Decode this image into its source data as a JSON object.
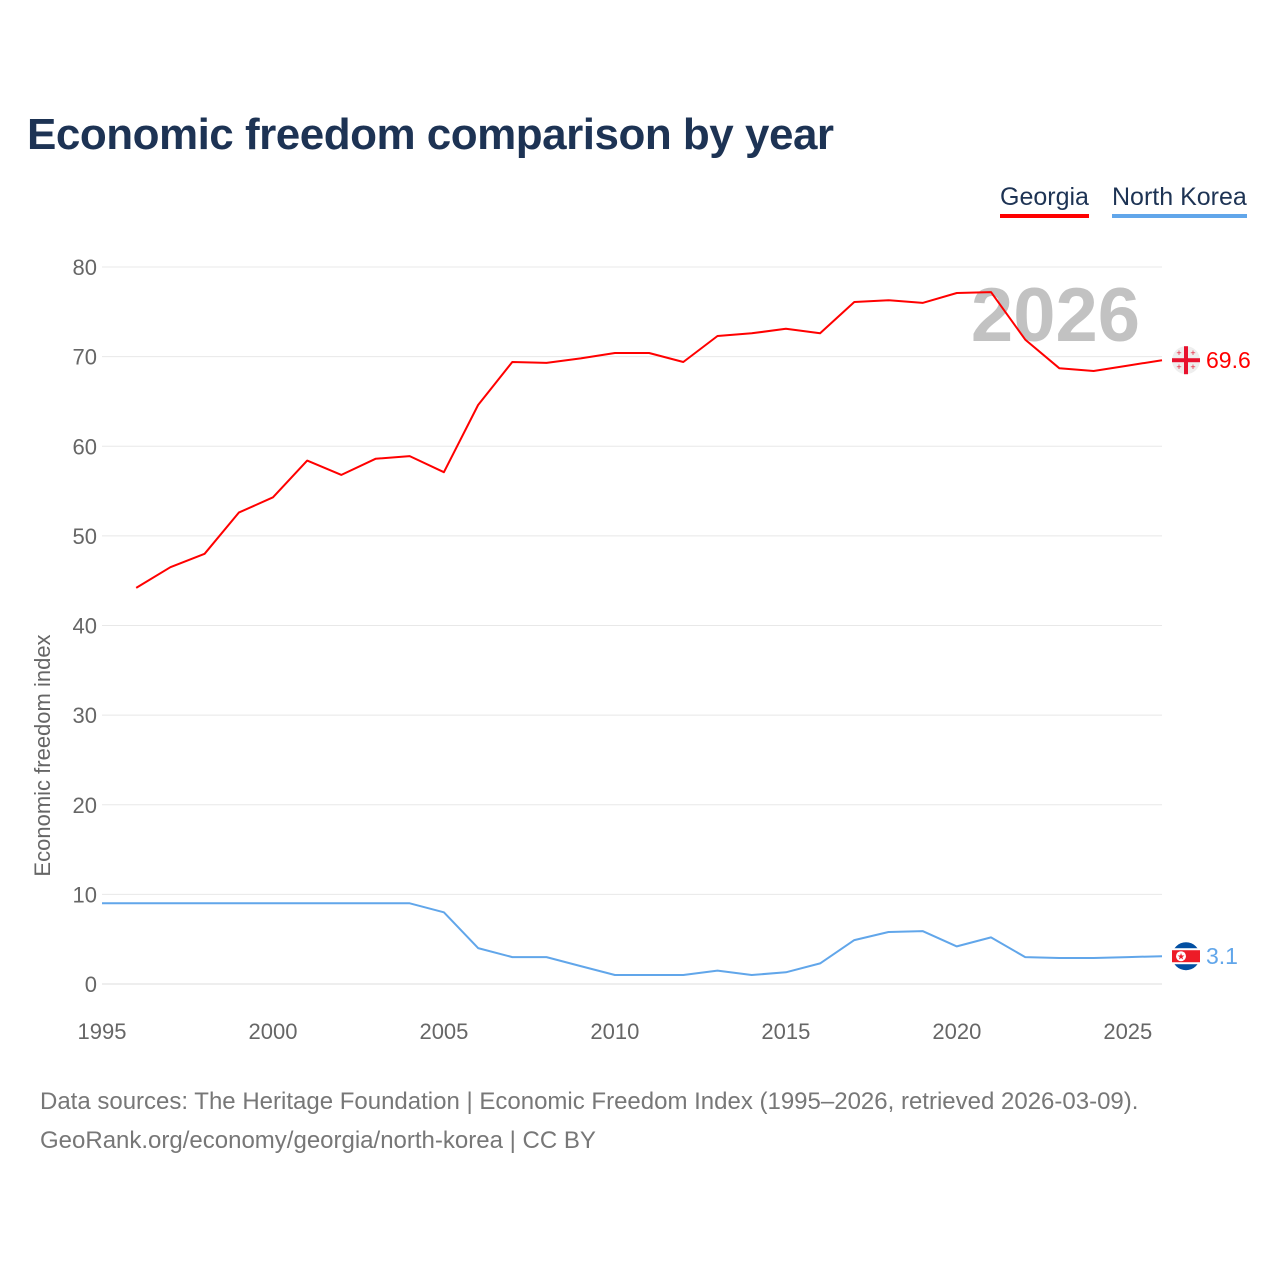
{
  "title": "Economic freedom comparison by year",
  "chart_data": {
    "type": "line",
    "title": "Economic freedom comparison by year",
    "xlabel": "",
    "ylabel": "Economic freedom index",
    "xlim": [
      1995,
      2026
    ],
    "ylim": [
      0,
      80
    ],
    "x_ticks": [
      1995,
      2000,
      2005,
      2010,
      2015,
      2020,
      2025
    ],
    "y_ticks": [
      0,
      10,
      20,
      30,
      40,
      50,
      60,
      70,
      80
    ],
    "grid": true,
    "legend_placement": "top-right",
    "year_watermark": "2026",
    "series": [
      {
        "name": "Georgia",
        "color": "#ff0000",
        "end_label": "69.6",
        "flag": "georgia-flag",
        "x": [
          1996,
          1997,
          1998,
          1999,
          2000,
          2001,
          2002,
          2003,
          2004,
          2005,
          2006,
          2007,
          2008,
          2009,
          2010,
          2011,
          2012,
          2013,
          2014,
          2015,
          2016,
          2017,
          2018,
          2019,
          2020,
          2021,
          2022,
          2023,
          2024,
          2025,
          2026
        ],
        "values": [
          44.2,
          46.5,
          48.0,
          52.6,
          54.3,
          58.4,
          56.8,
          58.6,
          58.9,
          57.1,
          64.6,
          69.4,
          69.3,
          69.8,
          70.4,
          70.4,
          69.4,
          72.3,
          72.6,
          73.1,
          72.6,
          76.1,
          76.3,
          76.0,
          77.1,
          77.2,
          71.9,
          68.7,
          68.4,
          69.0,
          69.6
        ]
      },
      {
        "name": "North Korea",
        "color": "#61a6ea",
        "end_label": "3.1",
        "flag": "north-korea-flag",
        "x": [
          1995,
          1996,
          1997,
          1998,
          1999,
          2000,
          2001,
          2002,
          2003,
          2004,
          2005,
          2006,
          2007,
          2008,
          2009,
          2010,
          2011,
          2012,
          2013,
          2014,
          2015,
          2016,
          2017,
          2018,
          2019,
          2020,
          2021,
          2022,
          2023,
          2024,
          2025,
          2026
        ],
        "values": [
          9.0,
          9.0,
          9.0,
          9.0,
          9.0,
          9.0,
          9.0,
          9.0,
          9.0,
          9.0,
          8.0,
          4.0,
          3.0,
          3.0,
          2.0,
          1.0,
          1.0,
          1.0,
          1.5,
          1.0,
          1.3,
          2.3,
          4.9,
          5.8,
          5.9,
          4.2,
          5.2,
          3.0,
          2.9,
          2.9,
          3.0,
          3.1
        ]
      }
    ]
  },
  "footer": {
    "line1": "Data sources: The Heritage Foundation | Economic Freedom Index (1995–2026, retrieved 2026-03-09).",
    "line2": "GeoRank.org/economy/georgia/north-korea | CC BY"
  }
}
